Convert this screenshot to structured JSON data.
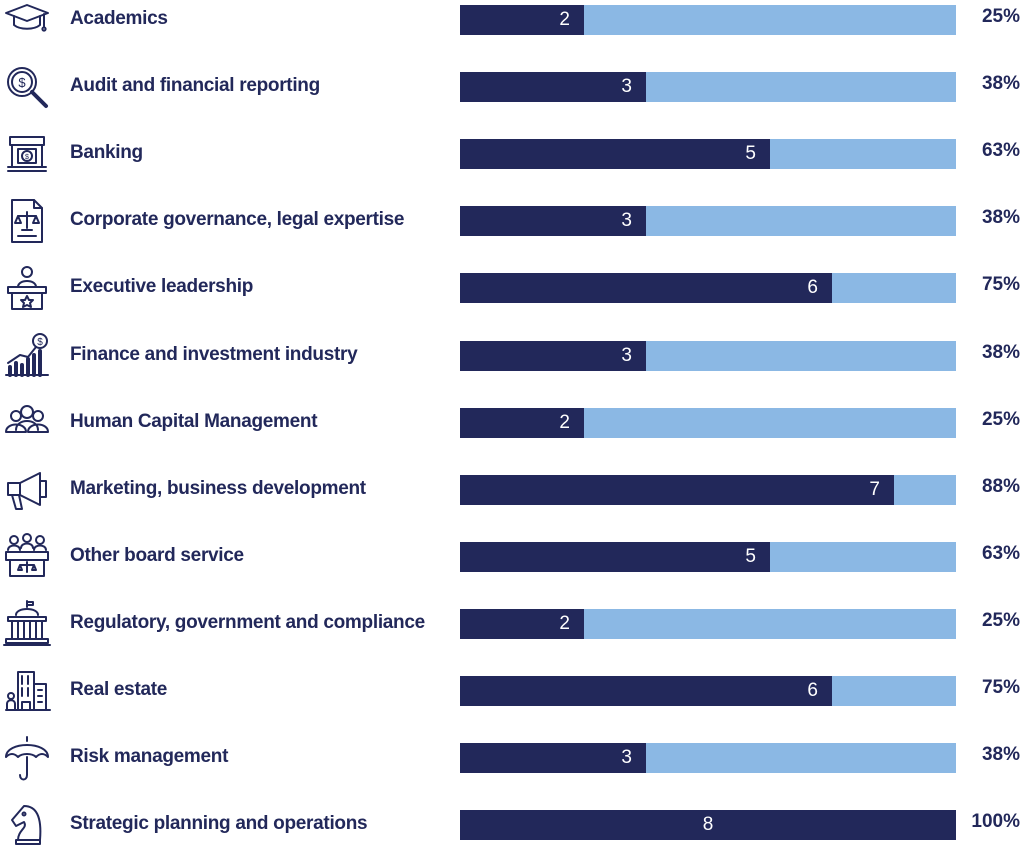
{
  "chart_data": {
    "type": "bar",
    "orientation": "horizontal",
    "stacked_total": 8,
    "categories": [
      "Academics",
      "Audit and financial reporting",
      "Banking",
      "Corporate governance, legal expertise",
      "Executive leadership",
      "Finance and investment industry",
      "Human Capital Management",
      "Marketing, business development",
      "Other board service",
      "Regulatory, government and compliance",
      "Real estate",
      "Risk management",
      "Strategic planning and operations"
    ],
    "values": [
      2,
      3,
      5,
      3,
      6,
      3,
      2,
      7,
      5,
      2,
      6,
      3,
      8
    ],
    "percent_labels": [
      "25%",
      "38%",
      "63%",
      "38%",
      "75%",
      "38%",
      "25%",
      "88%",
      "63%",
      "25%",
      "75%",
      "38%",
      "100%"
    ],
    "icons": [
      "graduation-cap-icon",
      "magnifier-dollar-icon",
      "bank-safe-icon",
      "legal-document-scales-icon",
      "podium-speaker-icon",
      "growth-chart-dollar-icon",
      "people-group-icon",
      "megaphone-icon",
      "board-table-scales-icon",
      "government-building-icon",
      "buildings-icon",
      "umbrella-icon",
      "chess-knight-icon"
    ],
    "colors": {
      "filled": "#22285a",
      "remaining": "#8bb8e4",
      "label": "#22285a",
      "value_text": "#ffffff"
    },
    "title": "",
    "xlabel": "",
    "ylabel": "",
    "xlim": [
      0,
      8
    ]
  }
}
